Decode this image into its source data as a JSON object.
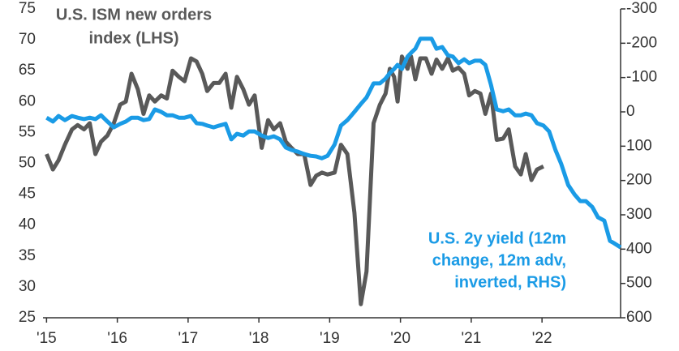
{
  "chart_data": {
    "type": "line",
    "annotations": [
      {
        "lines": [
          "U.S. ISM new orders",
          "index (LHS)"
        ],
        "color": "#595959"
      },
      {
        "lines": [
          "U.S. 2y yield (12m",
          "change, 12m adv,",
          "inverted, RHS)"
        ],
        "color": "#1a9be6"
      }
    ],
    "xlim": [
      2014.95,
      2023.11
    ],
    "xticks": [
      {
        "value": 2015,
        "label": "'15"
      },
      {
        "value": 2016,
        "label": "'16"
      },
      {
        "value": 2017,
        "label": "'17"
      },
      {
        "value": 2018,
        "label": "'18"
      },
      {
        "value": 2019,
        "label": "'19"
      },
      {
        "value": 2020,
        "label": "'20"
      },
      {
        "value": 2021,
        "label": "'21"
      },
      {
        "value": 2022,
        "label": "'22"
      }
    ],
    "ylim": [
      25,
      75
    ],
    "yticks": [
      25,
      30,
      35,
      40,
      45,
      50,
      55,
      60,
      65,
      70,
      75
    ],
    "y2lim": [
      -300,
      600
    ],
    "y2_inverted": true,
    "y2ticks": [
      -300,
      -200,
      -100,
      0,
      100,
      200,
      300,
      400,
      500,
      600
    ],
    "series": [
      {
        "name": "U.S. ISM new orders index (LHS)",
        "color": "#595959",
        "axis": "y",
        "x": [
          2015.0,
          2015.09,
          2015.17,
          2015.26,
          2015.36,
          2015.44,
          2015.53,
          2015.61,
          2015.69,
          2015.77,
          2015.86,
          2015.95,
          2016.04,
          2016.12,
          2016.2,
          2016.29,
          2016.37,
          2016.45,
          2016.53,
          2016.62,
          2016.7,
          2016.78,
          2016.87,
          2016.95,
          2017.04,
          2017.12,
          2017.2,
          2017.27,
          2017.36,
          2017.44,
          2017.53,
          2017.61,
          2017.69,
          2017.78,
          2017.86,
          2017.94,
          2018.04,
          2018.13,
          2018.21,
          2018.3,
          2018.38,
          2018.46,
          2018.55,
          2018.64,
          2018.73,
          2018.81,
          2018.89,
          2018.97,
          2019.07,
          2019.16,
          2019.25,
          2019.35,
          2019.44,
          2019.52,
          2019.62,
          2019.71,
          2019.79,
          2019.85,
          2019.91,
          2019.96,
          2020.02,
          2020.1,
          2020.15,
          2020.21,
          2020.28,
          2020.36,
          2020.44,
          2020.51,
          2020.59,
          2020.67,
          2020.74,
          2020.82,
          2020.9,
          2020.97,
          2021.05,
          2021.13,
          2021.2,
          2021.28,
          2021.36,
          2021.45,
          2021.53,
          2021.62,
          2021.7,
          2021.77,
          2021.85,
          2021.93,
          2022.02
        ],
        "values": [
          51.5,
          49,
          50.5,
          53,
          55.5,
          56.2,
          55.5,
          56.5,
          51.5,
          53.5,
          54.5,
          56.5,
          59.5,
          60,
          64.5,
          62,
          58,
          61,
          60,
          61,
          60.5,
          65,
          64,
          63.3,
          67,
          66.5,
          64.5,
          61.7,
          63,
          63,
          64.5,
          59,
          64,
          62,
          59.5,
          61,
          52.5,
          57,
          55.5,
          56.5,
          53.5,
          52.5,
          51.5,
          51.5,
          46.5,
          48,
          48.5,
          48.2,
          48.5,
          53,
          51.5,
          42,
          27.2,
          32.5,
          56.5,
          59.5,
          61.3,
          65.3,
          64,
          60,
          67.3,
          65.3,
          67.3,
          63.6,
          67,
          67,
          64.5,
          66.8,
          65.3,
          67,
          65,
          65.5,
          64.5,
          61,
          61.7,
          61.3,
          58,
          61.3,
          53.8,
          54,
          55.5,
          49.5,
          48.2,
          51.5,
          47.3,
          49,
          49.5
        ]
      },
      {
        "name": "U.S. 2y yield (12m change, 12m adv, inverted, RHS)",
        "color": "#1a9be6",
        "axis": "y2",
        "x": [
          2015.0,
          2015.09,
          2015.17,
          2015.26,
          2015.36,
          2015.44,
          2015.53,
          2015.61,
          2015.69,
          2015.77,
          2015.86,
          2015.95,
          2016.04,
          2016.12,
          2016.2,
          2016.29,
          2016.37,
          2016.45,
          2016.53,
          2016.62,
          2016.7,
          2016.78,
          2016.87,
          2016.95,
          2017.04,
          2017.12,
          2017.2,
          2017.27,
          2017.36,
          2017.44,
          2017.53,
          2017.61,
          2017.69,
          2017.78,
          2017.86,
          2017.94,
          2018.04,
          2018.13,
          2018.21,
          2018.3,
          2018.38,
          2018.46,
          2018.55,
          2018.64,
          2018.73,
          2018.81,
          2018.89,
          2018.97,
          2019.07,
          2019.16,
          2019.25,
          2019.35,
          2019.44,
          2019.52,
          2019.62,
          2019.71,
          2019.79,
          2019.85,
          2019.91,
          2019.96,
          2020.02,
          2020.1,
          2020.15,
          2020.21,
          2020.28,
          2020.36,
          2020.44,
          2020.51,
          2020.59,
          2020.67,
          2020.74,
          2020.82,
          2020.9,
          2020.97,
          2021.05,
          2021.13,
          2021.2,
          2021.28,
          2021.36,
          2021.45,
          2021.53,
          2021.62,
          2021.7,
          2021.77,
          2021.85,
          2021.93,
          2022.02,
          2022.1,
          2022.19,
          2022.27,
          2022.37,
          2022.46,
          2022.54,
          2022.62,
          2022.71,
          2022.79,
          2022.88,
          2022.96,
          2023.02,
          2023.11
        ],
        "values": [
          17,
          28,
          12,
          24,
          12,
          17,
          21,
          17,
          21,
          10,
          28,
          45,
          35,
          28,
          17,
          17,
          24,
          21,
          -7,
          0,
          10,
          10,
          17,
          17,
          12,
          33,
          35,
          40,
          45,
          40,
          35,
          80,
          64,
          69,
          57,
          57,
          69,
          76,
          71,
          80,
          104,
          111,
          116,
          123,
          128,
          130,
          135,
          128,
          95,
          40,
          24,
          0,
          -23,
          -42,
          -83,
          -83,
          -97,
          -113,
          -125,
          -137,
          -125,
          -161,
          -172,
          -184,
          -213,
          -213,
          -213,
          -184,
          -189,
          -165,
          -161,
          -142,
          -153,
          -142,
          -149,
          -149,
          -137,
          -78,
          -7,
          -2,
          -7,
          10,
          10,
          5,
          10,
          33,
          40,
          57,
          111,
          151,
          213,
          241,
          260,
          260,
          277,
          307,
          317,
          376,
          383,
          395
        ]
      }
    ]
  }
}
